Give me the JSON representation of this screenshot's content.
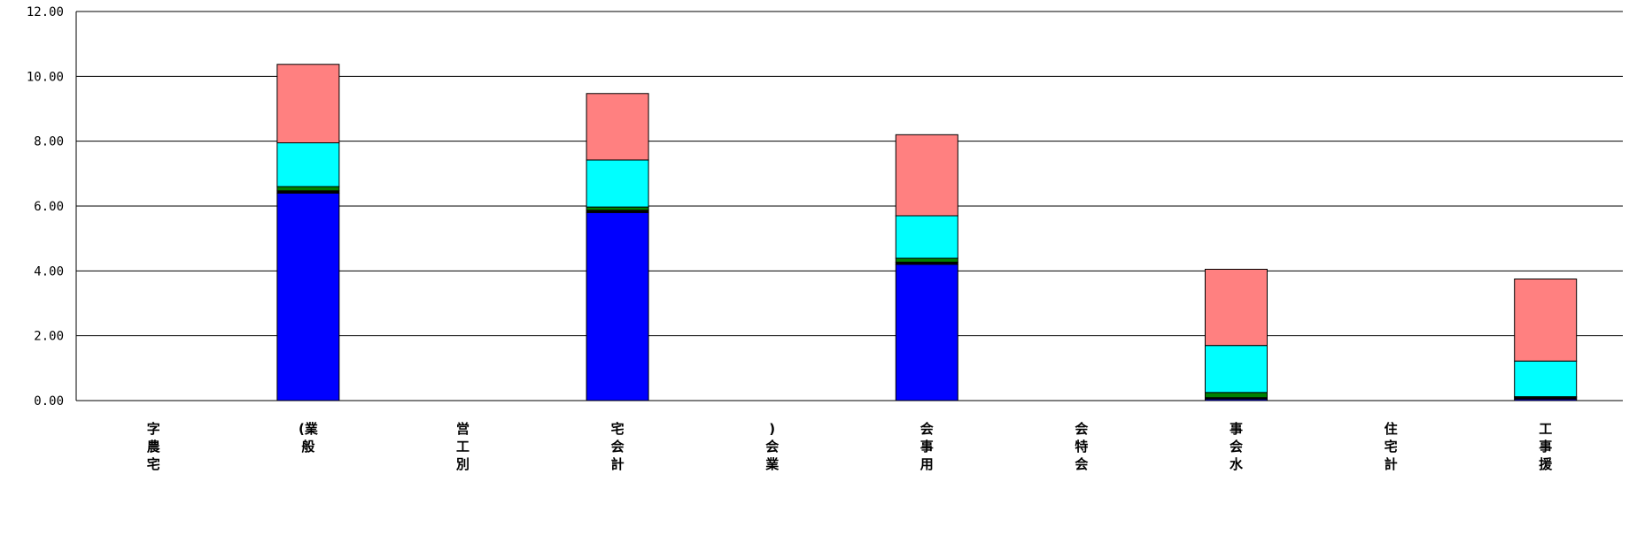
{
  "chart_data": {
    "type": "bar",
    "stacked": true,
    "ylim": [
      0,
      12
    ],
    "yticks": [
      "0.00",
      "2.00",
      "4.00",
      "6.00",
      "8.00",
      "10.00",
      "12.00"
    ],
    "grid": true,
    "categories": [
      [
        "字",
        "農",
        "宅"
      ],
      [
        "(業",
        "般"
      ],
      [
        "営",
        "工",
        "別"
      ],
      [
        "宅",
        "会",
        "計"
      ],
      [
        ")",
        "会",
        "業"
      ],
      [
        "会",
        "事",
        "用"
      ],
      [
        "会",
        "特",
        "会"
      ],
      [
        "事",
        "会",
        "水"
      ],
      [
        "住",
        "宅",
        "計"
      ],
      [
        "工",
        "事",
        "援"
      ]
    ],
    "series": [
      {
        "color": "#0000ff",
        "values": [
          0,
          6.4,
          0,
          5.8,
          0,
          4.2,
          0,
          0.05,
          0,
          0.05
        ]
      },
      {
        "color": "#000000",
        "values": [
          0,
          0.07,
          0,
          0.07,
          0,
          0.07,
          0,
          0.04,
          0,
          0.04
        ]
      },
      {
        "color": "#008000",
        "values": [
          0,
          0.13,
          0,
          0.1,
          0,
          0.12,
          0,
          0.16,
          0,
          0.03
        ]
      },
      {
        "color": "#00ffff",
        "values": [
          0,
          1.35,
          0,
          1.45,
          0,
          1.31,
          0,
          1.45,
          0,
          1.1
        ]
      },
      {
        "color": "#ff8080",
        "values": [
          0,
          2.42,
          0,
          2.05,
          0,
          2.5,
          0,
          2.35,
          0,
          2.53
        ]
      }
    ]
  }
}
